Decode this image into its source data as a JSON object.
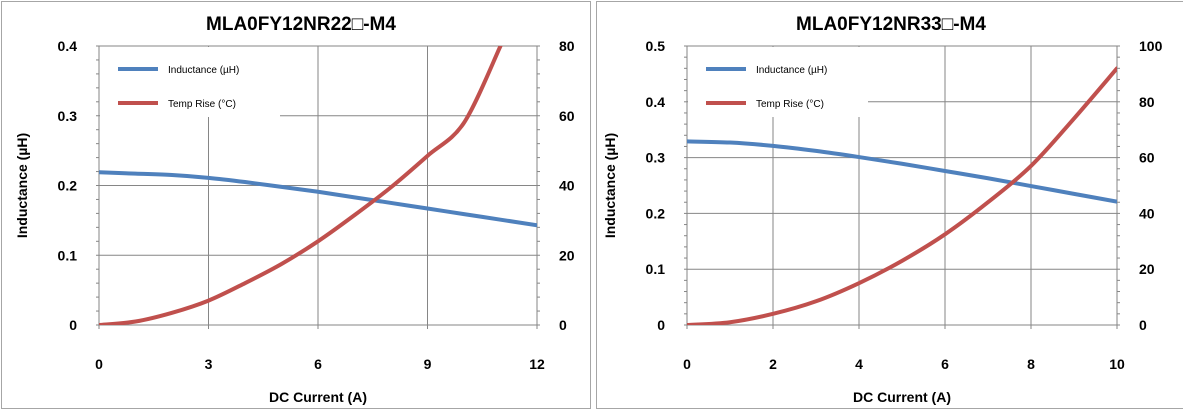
{
  "chart_data": [
    {
      "type": "line",
      "title": "MLA0FY12NR22□-M4",
      "xlabel": "DC Current (A)",
      "ylabel": "Inductance (µH)",
      "y2label": "",
      "xlim": [
        0,
        12
      ],
      "ylim": [
        0,
        0.4
      ],
      "y2lim": [
        0,
        80
      ],
      "xticks": [
        "0",
        "3",
        "6",
        "9",
        "12"
      ],
      "yticks": [
        "0",
        "0.1",
        "0.2",
        "0.3",
        "0.4"
      ],
      "y2ticks": [
        "0",
        "20",
        "40",
        "60",
        "80"
      ],
      "grid": true,
      "legend_position": "top-left",
      "series": [
        {
          "name": "Inductance (µH)",
          "axis": "left",
          "color": "#4f81bd",
          "x": [
            0,
            1,
            2,
            3,
            4,
            5,
            6,
            7,
            8,
            9,
            10,
            11,
            12
          ],
          "y": [
            0.219,
            0.217,
            0.215,
            0.211,
            0.205,
            0.198,
            0.191,
            0.183,
            0.175,
            0.167,
            0.159,
            0.151,
            0.143
          ]
        },
        {
          "name": "Temp Rise (°C)",
          "axis": "right",
          "color": "#c0504d",
          "x": [
            0,
            1,
            2,
            3,
            4,
            5,
            6,
            7,
            8,
            9,
            10,
            11
          ],
          "y": [
            0,
            1,
            3.5,
            7,
            12,
            17.5,
            24,
            31.5,
            39.5,
            48.5,
            58,
            80
          ]
        }
      ]
    },
    {
      "type": "line",
      "title": "MLA0FY12NR33□-M4",
      "xlabel": "DC Current (A)",
      "ylabel": "Inductance (µH)",
      "y2label": "",
      "xlim": [
        0,
        10
      ],
      "ylim": [
        0,
        0.5
      ],
      "y2lim": [
        0,
        100
      ],
      "xticks": [
        "0",
        "2",
        "4",
        "6",
        "8",
        "10"
      ],
      "yticks": [
        "0",
        "0.1",
        "0.2",
        "0.3",
        "0.4",
        "0.5"
      ],
      "y2ticks": [
        "0",
        "20",
        "40",
        "60",
        "80",
        "100"
      ],
      "grid": true,
      "legend_position": "top-left",
      "series": [
        {
          "name": "Inductance (µH)",
          "axis": "left",
          "color": "#4f81bd",
          "x": [
            0,
            1,
            2,
            3,
            4,
            5,
            6,
            7,
            8,
            9,
            10
          ],
          "y": [
            0.329,
            0.327,
            0.321,
            0.312,
            0.301,
            0.289,
            0.276,
            0.263,
            0.249,
            0.235,
            0.221
          ]
        },
        {
          "name": "Temp Rise (°C)",
          "axis": "right",
          "color": "#c0504d",
          "x": [
            0,
            1,
            2,
            3,
            4,
            5,
            6,
            7,
            8,
            9,
            10
          ],
          "y": [
            0,
            1,
            4,
            8.5,
            15,
            23,
            32.5,
            44,
            57,
            74,
            92
          ]
        }
      ]
    }
  ]
}
